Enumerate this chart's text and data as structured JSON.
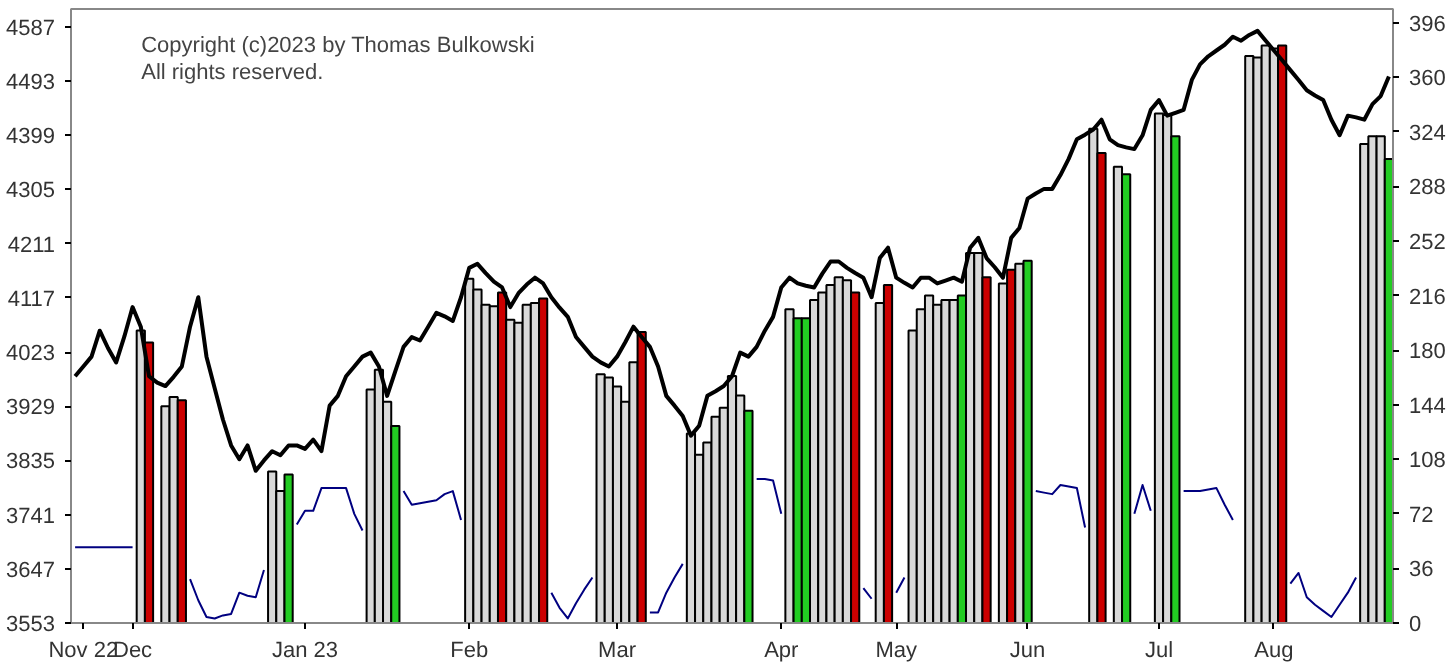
{
  "chart_data": {
    "type": "bar",
    "annotations": [
      "Copyright (c)2023 by Thomas Bulkowski",
      "All rights reserved."
    ],
    "categories": [
      null,
      "Nov 22",
      null,
      null,
      null,
      null,
      null,
      "Dec",
      null,
      null,
      null,
      null,
      null,
      null,
      null,
      null,
      null,
      null,
      null,
      null,
      null,
      null,
      null,
      null,
      null,
      null,
      null,
      null,
      "Jan 23",
      null,
      null,
      null,
      null,
      null,
      null,
      null,
      null,
      null,
      null,
      null,
      null,
      null,
      null,
      null,
      null,
      null,
      null,
      null,
      "Feb",
      null,
      null,
      null,
      null,
      null,
      null,
      null,
      null,
      null,
      null,
      null,
      null,
      null,
      null,
      null,
      null,
      null,
      "Mar",
      null,
      null,
      null,
      null,
      null,
      null,
      null,
      null,
      null,
      null,
      null,
      null,
      null,
      null,
      null,
      null,
      null,
      null,
      null,
      "Apr",
      null,
      null,
      null,
      null,
      null,
      null,
      null,
      null,
      null,
      null,
      null,
      null,
      null,
      "May",
      null,
      null,
      null,
      null,
      null,
      null,
      null,
      null,
      null,
      null,
      null,
      null,
      null,
      null,
      null,
      "Jun",
      null,
      null,
      null,
      null,
      null,
      null,
      null,
      null,
      null,
      null,
      null,
      null,
      null,
      null,
      null,
      "Jul",
      null,
      null,
      null,
      null,
      null,
      null,
      null,
      null,
      null,
      null,
      null,
      null,
      null,
      "Aug",
      null,
      null,
      null,
      null,
      null,
      null,
      null,
      null,
      null,
      null,
      null,
      null,
      null,
      null
    ],
    "ylim": [
      3553,
      4618
    ],
    "yticks": [
      3553,
      3647,
      3741,
      3835,
      3929,
      4023,
      4117,
      4211,
      4305,
      4399,
      4493,
      4587
    ],
    "y2lim": [
      0,
      405
    ],
    "y2ticks": [
      0,
      36,
      72,
      108,
      144,
      180,
      216,
      252,
      288,
      324,
      360,
      396
    ],
    "series": [
      {
        "axis": "y2",
        "values": [
          null,
          null,
          null,
          null,
          null,
          null,
          null,
          null,
          193,
          185,
          null,
          143,
          149,
          147,
          null,
          null,
          null,
          null,
          null,
          null,
          null,
          null,
          null,
          null,
          100,
          87,
          98,
          null,
          null,
          null,
          null,
          null,
          null,
          null,
          null,
          null,
          154,
          167,
          146,
          130,
          null,
          null,
          null,
          null,
          null,
          null,
          null,
          null,
          227,
          220,
          210,
          209,
          218,
          200,
          198,
          210,
          211,
          214,
          null,
          null,
          null,
          null,
          null,
          null,
          164,
          162,
          156,
          146,
          172,
          192,
          null,
          null,
          null,
          null,
          null,
          125,
          111,
          119,
          136,
          142,
          163,
          150,
          140,
          null,
          null,
          null,
          null,
          207,
          201,
          201,
          213,
          218,
          223,
          228,
          226,
          218,
          null,
          null,
          211,
          223,
          null,
          null,
          193,
          207,
          216,
          210,
          213,
          213,
          216,
          244,
          244,
          228,
          null,
          224,
          233,
          237,
          239,
          null,
          null,
          null,
          null,
          null,
          null,
          null,
          326,
          310,
          null,
          301,
          296,
          null,
          null,
          null,
          336,
          335,
          321,
          null,
          null,
          null,
          null,
          null,
          null,
          null,
          null,
          374,
          373,
          381,
          379,
          381,
          null,
          null,
          null,
          null,
          null,
          null,
          null,
          null,
          null,
          316,
          321,
          321,
          306
        ],
        "colors": [
          null,
          null,
          null,
          null,
          null,
          null,
          null,
          null,
          "#d9d9d9",
          "#cc0000",
          null,
          "#d9d9d9",
          "#d9d9d9",
          "#cc0000",
          null,
          null,
          null,
          null,
          null,
          null,
          null,
          null,
          null,
          null,
          "#d9d9d9",
          "#d9d9d9",
          "#22cc22",
          null,
          null,
          null,
          null,
          null,
          null,
          null,
          null,
          null,
          "#d9d9d9",
          "#d9d9d9",
          "#d9d9d9",
          "#22cc22",
          null,
          null,
          null,
          null,
          null,
          null,
          null,
          null,
          "#d9d9d9",
          "#d9d9d9",
          "#d9d9d9",
          "#d9d9d9",
          "#cc0000",
          "#d9d9d9",
          "#d9d9d9",
          "#d9d9d9",
          "#d9d9d9",
          "#cc0000",
          null,
          null,
          null,
          null,
          null,
          null,
          "#d9d9d9",
          "#d9d9d9",
          "#d9d9d9",
          "#d9d9d9",
          "#d9d9d9",
          "#cc0000",
          null,
          null,
          null,
          null,
          null,
          "#d9d9d9",
          "#d9d9d9",
          "#d9d9d9",
          "#d9d9d9",
          "#d9d9d9",
          "#d9d9d9",
          "#d9d9d9",
          "#22cc22",
          null,
          null,
          null,
          null,
          "#d9d9d9",
          "#22cc22",
          "#22cc22",
          "#d9d9d9",
          "#d9d9d9",
          "#d9d9d9",
          "#d9d9d9",
          "#d9d9d9",
          "#cc0000",
          null,
          null,
          "#d9d9d9",
          "#cc0000",
          null,
          null,
          "#d9d9d9",
          "#d9d9d9",
          "#d9d9d9",
          "#d9d9d9",
          "#d9d9d9",
          "#d9d9d9",
          "#22cc22",
          "#d9d9d9",
          "#d9d9d9",
          "#cc0000",
          null,
          "#d9d9d9",
          "#cc0000",
          "#d9d9d9",
          "#22cc22",
          null,
          null,
          null,
          null,
          null,
          null,
          null,
          "#d9d9d9",
          "#cc0000",
          null,
          "#d9d9d9",
          "#22cc22",
          null,
          null,
          null,
          "#d9d9d9",
          "#d9d9d9",
          "#22cc22",
          null,
          null,
          null,
          null,
          null,
          null,
          null,
          null,
          "#d9d9d9",
          "#d9d9d9",
          "#d9d9d9",
          "#d9d9d9",
          "#cc0000",
          null,
          null,
          null,
          null,
          null,
          null,
          null,
          null,
          null,
          "#d9d9d9",
          "#d9d9d9",
          "#d9d9d9",
          "#22cc22"
        ]
      },
      {
        "type": "line",
        "axis": "y2",
        "color": "#000080",
        "values": [
          50,
          50,
          50,
          50,
          50,
          50,
          50,
          50,
          null,
          null,
          null,
          null,
          null,
          null,
          29,
          15,
          4,
          3,
          5,
          6,
          20,
          18,
          17,
          35,
          null,
          null,
          null,
          65,
          74,
          74,
          89,
          89,
          89,
          89,
          72,
          61,
          null,
          null,
          null,
          null,
          87,
          78,
          79,
          80,
          81,
          85,
          87,
          68,
          null,
          null,
          null,
          null,
          null,
          null,
          null,
          null,
          null,
          null,
          20,
          10,
          3,
          13,
          22,
          30,
          null,
          null,
          null,
          null,
          null,
          null,
          7,
          7,
          20,
          30,
          39,
          null,
          null,
          null,
          null,
          null,
          null,
          null,
          null,
          95,
          95,
          94,
          72,
          null,
          null,
          null,
          null,
          null,
          null,
          null,
          null,
          null,
          23,
          16,
          null,
          null,
          20,
          30,
          null,
          null,
          null,
          null,
          null,
          null,
          null,
          null,
          null,
          null,
          null,
          null,
          null,
          null,
          null,
          87,
          86,
          85,
          91,
          90,
          89,
          63,
          null,
          null,
          null,
          null,
          null,
          72,
          91,
          74,
          null,
          null,
          null,
          87,
          87,
          87,
          88,
          89,
          78,
          68,
          null,
          null,
          null,
          null,
          null,
          null,
          26,
          33,
          17,
          12,
          8,
          4,
          12,
          20,
          30,
          null,
          null,
          null,
          null
        ]
      },
      {
        "type": "line",
        "color": "#000000",
        "values": [
          3981,
          3998,
          4015,
          4060,
          4030,
          4005,
          4050,
          4101,
          4067,
          3981,
          3970,
          3964,
          3980,
          3998,
          4067,
          4118,
          4015,
          3960,
          3906,
          3861,
          3837,
          3861,
          3817,
          3835,
          3851,
          3844,
          3861,
          3861,
          3855,
          3871,
          3851,
          3930,
          3947,
          3981,
          3998,
          4015,
          4022,
          3998,
          3947,
          3990,
          4032,
          4049,
          4043,
          4067,
          4091,
          4085,
          4077,
          4118,
          4169,
          4176,
          4160,
          4145,
          4135,
          4101,
          4125,
          4140,
          4152,
          4142,
          4118,
          4100,
          4084,
          4049,
          4032,
          4015,
          4005,
          3998,
          4015,
          4040,
          4067,
          4049,
          4032,
          3998,
          3947,
          3930,
          3912,
          3878,
          3895,
          3947,
          3955,
          3964,
          3981,
          4022,
          4015,
          4032,
          4060,
          4084,
          4135,
          4152,
          4142,
          4138,
          4135,
          4159,
          4180,
          4180,
          4169,
          4160,
          4152,
          4118,
          4186,
          4204,
          4152,
          4143,
          4135,
          4152,
          4152,
          4142,
          4147,
          4152,
          4145,
          4204,
          4221,
          4186,
          4170,
          4152,
          4221,
          4238,
          4289,
          4298,
          4306,
          4306,
          4330,
          4358,
          4392,
          4400,
          4409,
          4426,
          4392,
          4382,
          4378,
          4375,
          4399,
          4443,
          4460,
          4433,
          4438,
          4443,
          4495,
          4522,
          4536,
          4546,
          4556,
          4570,
          4563,
          4573,
          4580,
          4563,
          4546,
          4529,
          4512,
          4495,
          4477,
          4468,
          4460,
          4426,
          4399,
          4433,
          4430,
          4426,
          4453,
          4467,
          4501
        ]
      }
    ]
  }
}
